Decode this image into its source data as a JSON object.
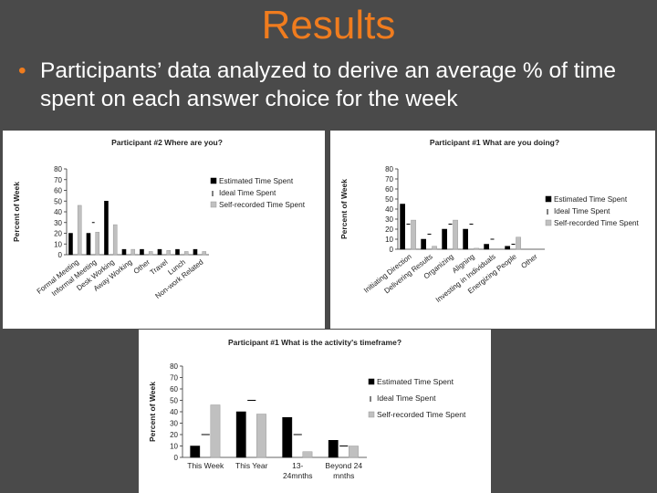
{
  "slide": {
    "title": "Results",
    "bullet": "Participants’ data analyzed to derive an average % of time spent on each answer choice for the week",
    "colors": {
      "background": "#4a4a4a",
      "title": "#f07c1e",
      "text": "#ffffff"
    }
  },
  "chart_data": [
    {
      "type": "bar",
      "title": "Participant #2 Where are you?",
      "ylabel": "Percent of Week",
      "ylim": [
        0,
        80
      ],
      "yticks": [
        0,
        10,
        20,
        30,
        40,
        50,
        60,
        70,
        80
      ],
      "categories": [
        "Formal Meeting",
        "Informal Meeting",
        "Desk Working",
        "Away Working",
        "Other",
        "Travel",
        "Lunch",
        "Non-work Related"
      ],
      "series": [
        {
          "name": "Estimated Time Spent",
          "color": "#000000",
          "values": [
            20,
            20,
            50,
            5,
            5,
            5,
            5,
            5
          ]
        },
        {
          "name": "Ideal Time Spent",
          "color": "#ffffff",
          "values": [
            0,
            30,
            0,
            0,
            0,
            0,
            0,
            0
          ]
        },
        {
          "name": "Self-recorded Time Spent",
          "color": "#c0c0c0",
          "values": [
            46,
            21,
            28,
            5,
            3,
            4,
            3,
            3
          ]
        }
      ],
      "legend": "right"
    },
    {
      "type": "bar",
      "title": "Participant #1 What are you doing?",
      "ylabel": "Percent of Week",
      "ylim": [
        0,
        80
      ],
      "yticks": [
        0,
        10,
        20,
        30,
        40,
        50,
        60,
        70,
        80
      ],
      "categories": [
        "Initiating Direction",
        "Delivering Results",
        "Organizing",
        "Aligning",
        "Investing in Individuals",
        "Energizing People",
        "Other"
      ],
      "series": [
        {
          "name": "Estimated Time Spent",
          "color": "#000000",
          "values": [
            45,
            10,
            20,
            20,
            5,
            3,
            0
          ]
        },
        {
          "name": "Ideal Time Spent",
          "color": "#ffffff",
          "values": [
            25,
            15,
            25,
            25,
            10,
            5,
            0
          ]
        },
        {
          "name": "Self-recorded Time Spent",
          "color": "#c0c0c0",
          "values": [
            29,
            3,
            29,
            1,
            0,
            12,
            0
          ]
        }
      ],
      "legend": "right"
    },
    {
      "type": "bar",
      "title": "Participant #1 What is the activity's timeframe?",
      "ylabel": "Percent of Week",
      "ylim": [
        0,
        80
      ],
      "yticks": [
        0,
        10,
        20,
        30,
        40,
        50,
        60,
        70,
        80
      ],
      "categories": [
        "This Week",
        "This Year",
        "13-24mnths",
        "Beyond 24 mnths"
      ],
      "series": [
        {
          "name": "Estimated Time Spent",
          "color": "#000000",
          "values": [
            10,
            40,
            35,
            15
          ]
        },
        {
          "name": "Ideal Time Spent",
          "color": "#ffffff",
          "values": [
            20,
            50,
            20,
            10
          ]
        },
        {
          "name": "Self-recorded Time Spent",
          "color": "#c0c0c0",
          "values": [
            46,
            38,
            5,
            10
          ]
        }
      ],
      "legend": "right"
    }
  ]
}
